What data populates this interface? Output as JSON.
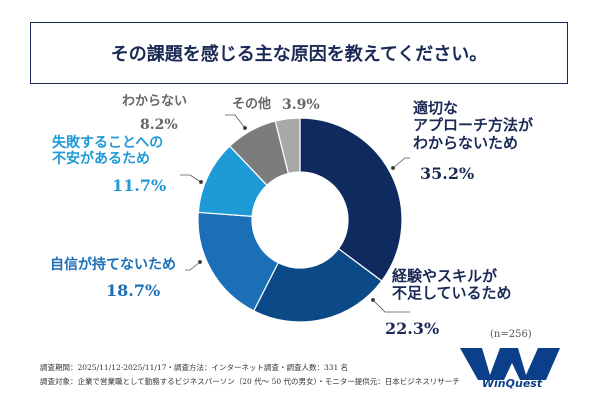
{
  "chart_data": {
    "type": "pie",
    "title": "その課題を感じる主な原因を教えてください。",
    "categories": [
      "適切なアプローチ方法がわからないため",
      "経験やスキルが不足しているため",
      "自信が持てないため",
      "失敗することへの不安があるため",
      "わからない",
      "その他"
    ],
    "values": [
      35.2,
      22.3,
      18.7,
      11.7,
      8.2,
      3.9
    ],
    "value_labels": [
      "35.2%",
      "22.3%",
      "18.7%",
      "11.7%",
      "8.2%",
      "3.9%"
    ],
    "colors": [
      "#0f2a5e",
      "#0b4a86",
      "#1a6fb6",
      "#1e9ad6",
      "#7c7c7c",
      "#a8a8a8"
    ],
    "donut": true,
    "sample": "(n=256)"
  },
  "labels": {
    "l0": [
      "適切な",
      "アプローチ方法が",
      "わからないため"
    ],
    "l1": [
      "経験やスキルが",
      "不足しているため"
    ],
    "l2": [
      "自信が持てないため"
    ],
    "l3": [
      "失敗することへの",
      "不安があるため"
    ],
    "l4": [
      "わからない"
    ],
    "l5": [
      "その他"
    ]
  },
  "footer": {
    "line1": "調査期間：2025/11/12-2025/11/17・調査方法：インターネット調査・調査人数：331 名",
    "line2": "調査対象：企業で営業職として勤務するビジネスパーソン（20 代～ 50 代の男女）・モニター提供元：日本ビジネスリサーチ"
  },
  "logo": {
    "text": "WinQuest",
    "mark": "WQ"
  }
}
